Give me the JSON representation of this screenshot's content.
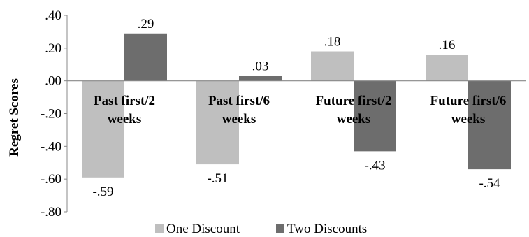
{
  "chart_data": {
    "type": "bar",
    "ylabel": "Regret Scores",
    "categories": [
      "Past first/2 weeks",
      "Past first/6 weeks",
      "Future first/2 weeks",
      "Future first/6 weeks"
    ],
    "category_lines": [
      [
        "Past first/2",
        "weeks"
      ],
      [
        "Past first/6",
        "weeks"
      ],
      [
        "Future first/2",
        "weeks"
      ],
      [
        "Future first/6",
        "weeks"
      ]
    ],
    "series": [
      {
        "name": "One Discount",
        "values": [
          -0.59,
          -0.51,
          0.18,
          0.16
        ],
        "labels": [
          "-.59",
          "-.51",
          ".18",
          ".16"
        ],
        "color": "#bfbfbf"
      },
      {
        "name": "Two Discounts",
        "values": [
          0.29,
          0.03,
          -0.43,
          -0.54
        ],
        "labels": [
          ".29",
          ".03",
          "-.43",
          "-.54"
        ],
        "color": "#6d6d6d"
      }
    ],
    "ylim": [
      -0.8,
      0.4
    ],
    "yticks": [
      0.4,
      0.2,
      0.0,
      -0.2,
      -0.4,
      -0.6,
      -0.8
    ],
    "ytick_labels": [
      ".40",
      ".20",
      ".00",
      "-.20",
      "-.40",
      "-.60",
      "-.80"
    ],
    "grid": false,
    "legend_position": "bottom"
  }
}
